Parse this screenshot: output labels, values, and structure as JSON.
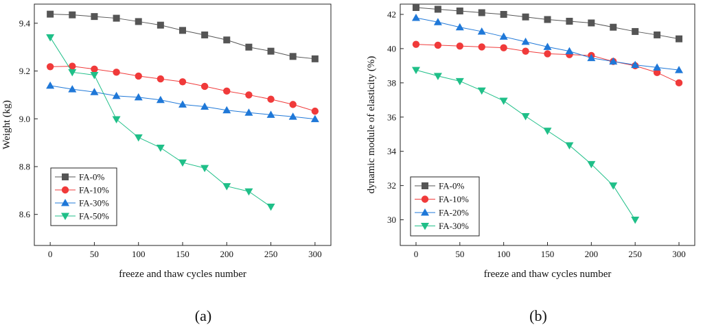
{
  "chart_data": [
    {
      "type": "line",
      "caption": "(a)",
      "xlabel": "freeze and thaw cycles number",
      "ylabel": "Weight (kg)",
      "xlim": [
        -18,
        318
      ],
      "ylim": [
        8.47,
        9.48
      ],
      "xticks": [
        0,
        50,
        100,
        150,
        200,
        250,
        300
      ],
      "yticks": [
        8.6,
        8.8,
        9.0,
        9.2,
        9.4
      ],
      "ytick_decimals": 1,
      "grid": false,
      "legend_position": "bottom-left",
      "series": [
        {
          "name": "FA-0%",
          "color": "#555555",
          "marker": "square",
          "x": [
            0,
            25,
            50,
            75,
            100,
            125,
            150,
            175,
            200,
            225,
            250,
            275,
            300
          ],
          "y": [
            9.438,
            9.435,
            9.428,
            9.421,
            9.407,
            9.392,
            9.37,
            9.351,
            9.33,
            9.3,
            9.283,
            9.261,
            9.251
          ]
        },
        {
          "name": "FA-10%",
          "color": "#f03a3a",
          "marker": "circle",
          "x": [
            0,
            25,
            50,
            75,
            100,
            125,
            150,
            175,
            200,
            225,
            250,
            275,
            300
          ],
          "y": [
            9.218,
            9.22,
            9.208,
            9.195,
            9.179,
            9.167,
            9.155,
            9.136,
            9.116,
            9.1,
            9.082,
            9.06,
            9.032
          ]
        },
        {
          "name": "FA-30%",
          "color": "#1f78d8",
          "marker": "triangle-up",
          "x": [
            0,
            25,
            50,
            75,
            100,
            125,
            150,
            175,
            200,
            225,
            250,
            275,
            300
          ],
          "y": [
            9.139,
            9.124,
            9.112,
            9.096,
            9.09,
            9.079,
            9.06,
            9.051,
            9.036,
            9.026,
            9.017,
            9.009,
            8.999
          ]
        },
        {
          "name": "FA-50%",
          "color": "#1fbf88",
          "marker": "triangle-down",
          "x": [
            0,
            25,
            50,
            75,
            100,
            125,
            150,
            175,
            200,
            225,
            250
          ],
          "y": [
            9.341,
            9.195,
            9.183,
            8.998,
            8.922,
            8.879,
            8.817,
            8.794,
            8.718,
            8.696,
            8.632
          ]
        }
      ]
    },
    {
      "type": "line",
      "caption": "(b)",
      "xlabel": "freeze and thaw cycles number",
      "ylabel": "dynamic module of elasticity (%)",
      "xlim": [
        -18,
        318
      ],
      "ylim": [
        28.5,
        42.6
      ],
      "xticks": [
        0,
        50,
        100,
        150,
        200,
        250,
        300
      ],
      "yticks": [
        30,
        32,
        34,
        36,
        38,
        40,
        42
      ],
      "ytick_decimals": 0,
      "grid": false,
      "legend_position": "bottom-left",
      "series": [
        {
          "name": "FA-0%",
          "color": "#555555",
          "marker": "square",
          "x": [
            0,
            25,
            50,
            75,
            100,
            125,
            150,
            175,
            200,
            225,
            250,
            275,
            300
          ],
          "y": [
            42.4,
            42.3,
            42.2,
            42.1,
            42.0,
            41.85,
            41.7,
            41.6,
            41.5,
            41.25,
            41.0,
            40.8,
            40.57
          ]
        },
        {
          "name": "FA-10%",
          "color": "#f03a3a",
          "marker": "circle",
          "x": [
            0,
            25,
            50,
            75,
            100,
            125,
            150,
            175,
            200,
            225,
            250,
            275,
            300
          ],
          "y": [
            40.25,
            40.2,
            40.15,
            40.1,
            40.05,
            39.85,
            39.7,
            39.65,
            39.6,
            39.25,
            39.0,
            38.6,
            38.0
          ]
        },
        {
          "name": "FA-20%",
          "color": "#1f78d8",
          "marker": "triangle-up",
          "x": [
            0,
            25,
            50,
            75,
            100,
            125,
            150,
            175,
            200,
            225,
            250,
            275,
            300
          ],
          "y": [
            41.8,
            41.55,
            41.25,
            41.0,
            40.7,
            40.4,
            40.1,
            39.85,
            39.45,
            39.25,
            39.05,
            38.9,
            38.75
          ]
        },
        {
          "name": "FA-30%",
          "color": "#1fbf88",
          "marker": "triangle-down",
          "x": [
            0,
            25,
            50,
            75,
            100,
            125,
            150,
            175,
            200,
            225,
            250
          ],
          "y": [
            38.75,
            38.4,
            38.1,
            37.55,
            36.95,
            36.05,
            35.2,
            34.35,
            33.25,
            32.0,
            30.0
          ]
        }
      ]
    }
  ]
}
